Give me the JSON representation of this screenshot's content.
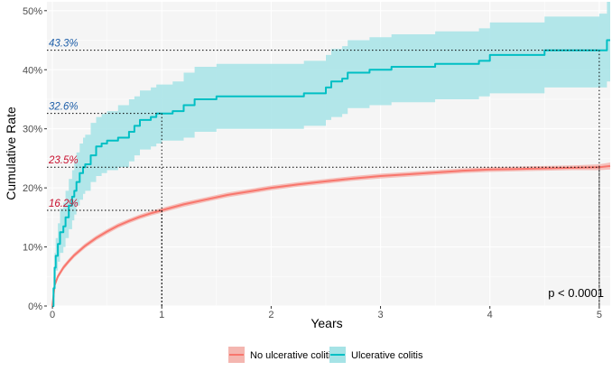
{
  "chart_data": {
    "type": "line",
    "title": "",
    "xlabel": "Years",
    "ylabel": "Cumulative Rate",
    "xlim": [
      -0.05,
      5.1
    ],
    "ylim": [
      0,
      51.5
    ],
    "x_ticks": [
      0,
      1,
      2,
      3,
      4,
      5
    ],
    "y_ticks": [
      0,
      10,
      20,
      30,
      40,
      50
    ],
    "y_tick_labels": [
      "0%",
      "10%",
      "20%",
      "30%",
      "40%",
      "50%"
    ],
    "grid": true,
    "legend_position": "bottom",
    "p_value_text": "p < 0.0001",
    "series": [
      {
        "name": "No ulcerative colitis",
        "color": "#F8766D",
        "band_color": "#F4B6B0",
        "step": false,
        "x": [
          0,
          0.02,
          0.05,
          0.1,
          0.15,
          0.2,
          0.3,
          0.4,
          0.5,
          0.6,
          0.7,
          0.8,
          0.9,
          1.0,
          1.2,
          1.4,
          1.6,
          1.8,
          2.0,
          2.25,
          2.5,
          2.75,
          3.0,
          3.25,
          3.5,
          3.75,
          4.0,
          4.25,
          4.5,
          4.75,
          5.0,
          5.1
        ],
        "y": [
          0,
          3.5,
          5.0,
          6.5,
          7.6,
          8.6,
          10.2,
          11.5,
          12.6,
          13.6,
          14.4,
          15.1,
          15.7,
          16.2,
          17.2,
          18.0,
          18.8,
          19.4,
          20.0,
          20.6,
          21.1,
          21.6,
          22.0,
          22.3,
          22.6,
          22.9,
          23.1,
          23.2,
          23.3,
          23.4,
          23.5,
          23.7
        ],
        "lower": [
          0,
          3.2,
          4.6,
          6.1,
          7.2,
          8.2,
          9.8,
          11.1,
          12.2,
          13.2,
          14.0,
          14.7,
          15.3,
          15.8,
          16.8,
          17.6,
          18.4,
          19.0,
          19.6,
          20.2,
          20.7,
          21.2,
          21.6,
          21.9,
          22.2,
          22.5,
          22.7,
          22.8,
          22.9,
          23.0,
          23.0,
          23.1
        ],
        "upper": [
          0,
          3.8,
          5.4,
          6.9,
          8.0,
          9.0,
          10.6,
          11.9,
          13.0,
          14.0,
          14.8,
          15.5,
          16.1,
          16.6,
          17.6,
          18.4,
          19.2,
          19.8,
          20.4,
          21.0,
          21.5,
          22.0,
          22.4,
          22.7,
          23.0,
          23.3,
          23.5,
          23.6,
          23.7,
          23.8,
          24.0,
          24.3
        ]
      },
      {
        "name": "Ulcerative colitis",
        "color": "#00BFC4",
        "band_color": "#A6E3E6",
        "step": true,
        "x": [
          0,
          0.01,
          0.02,
          0.03,
          0.05,
          0.07,
          0.1,
          0.12,
          0.15,
          0.18,
          0.2,
          0.22,
          0.25,
          0.28,
          0.3,
          0.35,
          0.4,
          0.45,
          0.5,
          0.6,
          0.7,
          0.75,
          0.8,
          0.9,
          0.95,
          1.0,
          1.1,
          1.2,
          1.3,
          1.5,
          1.7,
          2.0,
          2.3,
          2.5,
          2.55,
          2.65,
          2.7,
          2.9,
          3.1,
          3.5,
          3.9,
          4.0,
          4.5,
          5.0,
          5.07,
          5.1
        ],
        "y": [
          0,
          3.0,
          6.5,
          8.5,
          10.5,
          12.5,
          13.5,
          15.0,
          17.0,
          18.5,
          19.5,
          21.0,
          22.5,
          23.5,
          24.0,
          25.5,
          27.0,
          27.5,
          28.0,
          28.5,
          29.5,
          30.5,
          31.5,
          32.0,
          32.6,
          32.6,
          33.0,
          34.0,
          35.0,
          35.5,
          35.5,
          35.5,
          36.0,
          37.0,
          38.0,
          38.5,
          39.5,
          40.0,
          40.5,
          41.0,
          41.5,
          42.5,
          43.3,
          43.3,
          45.0,
          45.0
        ],
        "lower": [
          0,
          1.5,
          4.5,
          6.0,
          7.5,
          9.0,
          10.0,
          11.5,
          13.0,
          14.5,
          15.5,
          17.0,
          18.0,
          19.0,
          19.5,
          21.0,
          22.0,
          22.5,
          23.0,
          23.5,
          24.5,
          25.5,
          26.5,
          27.0,
          27.5,
          28.0,
          28.0,
          28.5,
          29.5,
          30.0,
          30.0,
          30.0,
          30.5,
          31.5,
          32.0,
          32.5,
          33.5,
          34.0,
          34.5,
          35.0,
          35.5,
          36.0,
          37.0,
          37.0,
          38.0,
          38.0
        ],
        "upper": [
          0,
          5.0,
          9.0,
          11.5,
          14.0,
          16.5,
          17.5,
          19.5,
          21.5,
          23.0,
          24.5,
          26.0,
          27.5,
          28.5,
          29.0,
          31.0,
          32.0,
          32.5,
          33.0,
          34.0,
          35.0,
          35.5,
          36.5,
          37.0,
          37.5,
          37.5,
          38.0,
          39.5,
          40.5,
          41.0,
          41.0,
          41.0,
          41.5,
          42.5,
          43.5,
          44.0,
          45.0,
          45.5,
          46.0,
          46.5,
          47.0,
          48.0,
          49.0,
          49.5,
          51.5,
          51.5
        ]
      }
    ],
    "reference_lines": [
      {
        "label": "43.3%",
        "y": 43.3,
        "x_end": 5.0,
        "color": "#1F5FA8"
      },
      {
        "label": "32.6%",
        "y": 32.6,
        "x_end": 1.0,
        "color": "#1F5FA8"
      },
      {
        "label": "23.5%",
        "y": 23.5,
        "x_end": 5.0,
        "color": "#C8102E"
      },
      {
        "label": "16.2%",
        "y": 16.2,
        "x_end": 1.0,
        "color": "#C8102E"
      }
    ]
  }
}
